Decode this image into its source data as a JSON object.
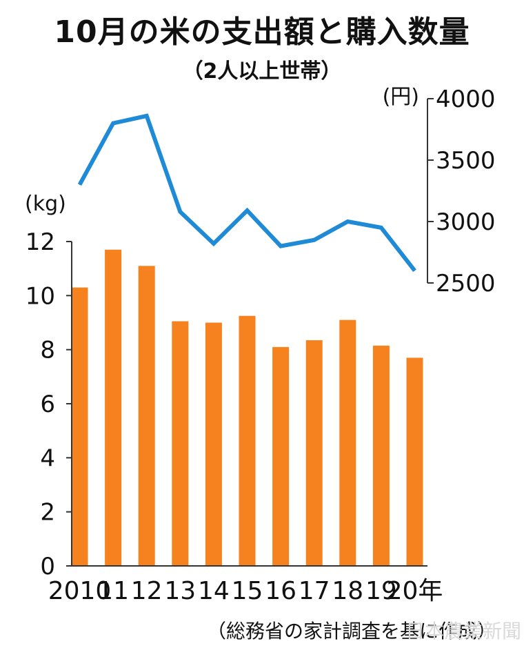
{
  "title": "10月の米の支出額と購入数量",
  "subtitle": "（2人以上世帯）",
  "source": "（総務省の家計調査を基に作成）",
  "watermark": "日本農業新聞",
  "colors": {
    "bar": "#f5821f",
    "line": "#1f8ad6",
    "axis": "#333333"
  },
  "chart_data": {
    "type": "bar+line",
    "categories": [
      "2010",
      "11",
      "12",
      "13",
      "14",
      "15",
      "16",
      "17",
      "18",
      "19",
      "20年"
    ],
    "series": [
      {
        "axis": "left",
        "type": "bar",
        "values": [
          10.3,
          11.7,
          11.1,
          9.05,
          9.0,
          9.25,
          8.1,
          8.35,
          9.1,
          8.15,
          7.7
        ]
      },
      {
        "axis": "right",
        "type": "line",
        "values": [
          3300,
          3800,
          3860,
          3080,
          2820,
          3090,
          2800,
          2850,
          3000,
          2950,
          2600
        ]
      }
    ],
    "left_axis": {
      "unit": "(kg)",
      "min": 0,
      "max": 12,
      "ticks": [
        0,
        2,
        4,
        6,
        8,
        10,
        12
      ]
    },
    "right_axis": {
      "unit": "(円)",
      "min": 2500,
      "max": 4000,
      "ticks": [
        2500,
        3000,
        3500,
        4000
      ]
    },
    "grid": false
  }
}
